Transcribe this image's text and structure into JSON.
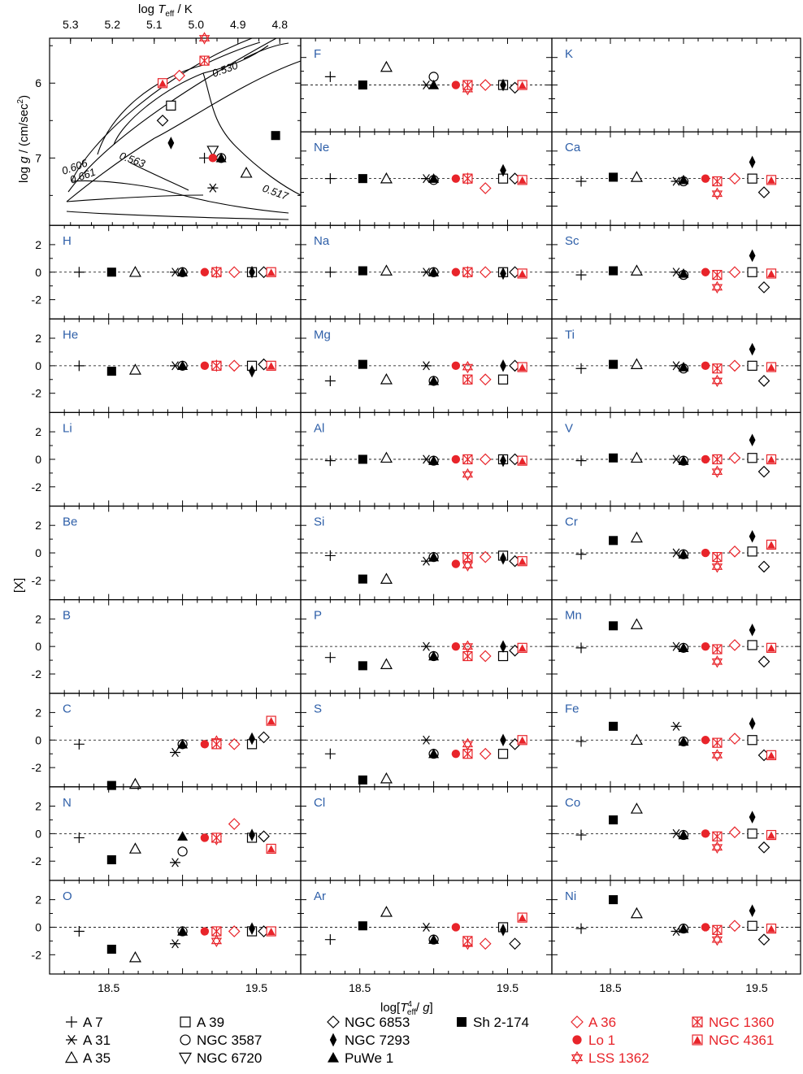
{
  "figure": {
    "xlabel": "log[T_eff^4/ g]",
    "ylabel": "[X]",
    "ylabel_top": "log g / (cm/sec²)",
    "top_axis_label": "log T_eff / K",
    "top_ticks": [
      "5.3",
      "5.2",
      "5.1",
      "5.0",
      "4.9",
      "4.8"
    ],
    "x_ticks": [
      "18.5",
      "19.5"
    ],
    "y_ticks": [
      "2",
      "0",
      "-2"
    ],
    "hr_y_ticks": [
      "6",
      "7"
    ],
    "track_labels": [
      "0.661",
      "0.606",
      "0.563",
      "0.530",
      "0.517"
    ]
  },
  "colors": {
    "black": "#000000",
    "red": "#e8242a",
    "label": "#2e5fa8"
  },
  "chart_data": {
    "type": "scatter",
    "x_range": [
      18.1,
      19.8
    ],
    "y_range": [
      -3.4,
      3.4
    ],
    "rows": [
      [
        "",
        "F",
        "K"
      ],
      [
        "",
        "Ne",
        "Ca"
      ],
      [
        "H",
        "Na",
        "Sc"
      ],
      [
        "He",
        "Mg",
        "Ti"
      ],
      [
        "Li",
        "Al",
        "V"
      ],
      [
        "Be",
        "Si",
        "Cr"
      ],
      [
        "B",
        "P",
        "Mn"
      ],
      [
        "C",
        "S",
        "Fe"
      ],
      [
        "N",
        "Cl",
        "Co"
      ],
      [
        "O",
        "Ar",
        "Ni"
      ]
    ],
    "stars": [
      {
        "name": "A 7",
        "x": 18.3,
        "color": "black",
        "symbol": "plus"
      },
      {
        "name": "A 31",
        "x": 18.95,
        "color": "black",
        "symbol": "asterisk"
      },
      {
        "name": "A 35",
        "x": 18.68,
        "color": "black",
        "symbol": "triangle-up-open"
      },
      {
        "name": "A 39",
        "x": 19.47,
        "color": "black",
        "symbol": "square-open"
      },
      {
        "name": "NGC 3587",
        "x": 19.0,
        "color": "black",
        "symbol": "circle-open"
      },
      {
        "name": "NGC 6720",
        "x": 19.0,
        "color": "black",
        "symbol": "triangle-down-open"
      },
      {
        "name": "NGC 6853",
        "x": 19.55,
        "color": "black",
        "symbol": "diamond-open"
      },
      {
        "name": "NGC 7293",
        "x": 19.47,
        "color": "black",
        "symbol": "diamond-filled"
      },
      {
        "name": "PuWe 1",
        "x": 19.0,
        "color": "black",
        "symbol": "triangle-up-filled"
      },
      {
        "name": "Sh 2-174",
        "x": 18.52,
        "color": "black",
        "symbol": "square-filled"
      },
      {
        "name": "A 36",
        "x": 19.35,
        "color": "red",
        "symbol": "diamond-open"
      },
      {
        "name": "Lo 1",
        "x": 19.15,
        "color": "red",
        "symbol": "circle-filled"
      },
      {
        "name": "LSS 1362",
        "x": 19.23,
        "color": "red",
        "symbol": "hexagram-open"
      },
      {
        "name": "NGC 1360",
        "x": 19.23,
        "color": "red",
        "symbol": "square-x"
      },
      {
        "name": "NGC 4361",
        "x": 19.6,
        "color": "red",
        "symbol": "triangle-in-square"
      }
    ],
    "abundances": {
      "H": {
        "A 7": 0,
        "A 31": 0,
        "A 35": 0,
        "A 39": 0,
        "NGC 3587": 0,
        "NGC 6853": 0,
        "NGC 7293": 0,
        "PuWe 1": 0,
        "Sh 2-174": 0,
        "A 36": 0,
        "Lo 1": 0,
        "LSS 1362": 0,
        "NGC 1360": 0,
        "NGC 4361": 0
      },
      "He": {
        "A 7": 0,
        "A 31": 0,
        "A 35": -0.3,
        "A 39": 0,
        "NGC 3587": 0,
        "NGC 6853": 0.1,
        "NGC 7293": -0.4,
        "PuWe 1": 0,
        "Sh 2-174": -0.4,
        "A 36": 0,
        "Lo 1": 0,
        "LSS 1362": 0,
        "NGC 1360": 0,
        "NGC 4361": 0
      },
      "C": {
        "A 7": -0.3,
        "A 31": -0.9,
        "A 35": -3.2,
        "A 39": -0.3,
        "NGC 3587": -0.3,
        "NGC 6853": 0.2,
        "NGC 7293": 0.1,
        "PuWe 1": -0.3,
        "Sh 2-174": -3.3,
        "A 36": -0.3,
        "Lo 1": -0.3,
        "LSS 1362": -0.1,
        "NGC 1360": -0.3,
        "NGC 4361": 1.4
      },
      "N": {
        "A 7": -0.3,
        "A 31": -2.1,
        "A 35": -1.1,
        "A 39": -0.3,
        "NGC 3587": -1.3,
        "NGC 6853": -0.2,
        "NGC 7293": -0.1,
        "PuWe 1": -0.2,
        "Sh 2-174": -1.9,
        "A 36": 0.7,
        "Lo 1": -0.3,
        "LSS 1362": -0.4,
        "NGC 1360": -0.3,
        "NGC 4361": -1.1
      },
      "O": {
        "A 7": -0.3,
        "A 31": -1.2,
        "A 35": -2.2,
        "A 39": -0.3,
        "NGC 3587": -0.3,
        "NGC 6853": -0.3,
        "NGC 7293": -0.1,
        "PuWe 1": -0.3,
        "Sh 2-174": -1.6,
        "A 36": -0.3,
        "Lo 1": -0.3,
        "LSS 1362": -1.0,
        "NGC 1360": -0.3,
        "NGC 4361": -0.3
      },
      "F": {
        "A 7": 0.6,
        "A 31": 0,
        "A 35": 1.3,
        "A 39": 0,
        "NGC 3587": 0.6,
        "NGC 6853": -0.2,
        "NGC 7293": 0,
        "PuWe 1": 0,
        "Sh 2-174": 0,
        "A 36": 0,
        "Lo 1": 0,
        "LSS 1362": -0.3,
        "NGC 1360": 0,
        "NGC 4361": 0
      },
      "Ne": {
        "A 7": 0,
        "A 31": 0,
        "A 35": 0,
        "A 39": 0,
        "NGC 3587": -0.1,
        "NGC 6853": 0,
        "NGC 7293": 0.6,
        "PuWe 1": 0,
        "Sh 2-174": 0,
        "A 36": -0.7,
        "Lo 1": 0,
        "LSS 1362": 0,
        "NGC 1360": 0,
        "NGC 4361": -0.1
      },
      "Na": {
        "A 7": 0,
        "A 31": 0,
        "A 35": 0.1,
        "A 39": 0,
        "NGC 3587": 0,
        "NGC 6853": 0,
        "NGC 7293": -0.1,
        "PuWe 1": 0,
        "Sh 2-174": 0.1,
        "A 36": 0,
        "Lo 1": 0,
        "LSS 1362": 0,
        "NGC 1360": 0,
        "NGC 4361": -0.1
      },
      "Mg": {
        "A 7": -1.1,
        "A 31": 0,
        "A 35": -1.0,
        "A 39": -1.0,
        "NGC 3587": -1.1,
        "NGC 6853": 0,
        "NGC 7293": 0,
        "PuWe 1": -1.1,
        "Sh 2-174": 0.1,
        "A 36": -1.0,
        "Lo 1": 0,
        "LSS 1362": -0.1,
        "NGC 1360": -1.0,
        "NGC 4361": -0.1
      },
      "Al": {
        "A 7": -0.1,
        "A 31": 0,
        "A 35": 0.1,
        "A 39": 0,
        "NGC 3587": -0.1,
        "NGC 6853": 0,
        "NGC 7293": -0.1,
        "PuWe 1": -0.1,
        "Sh 2-174": 0,
        "A 36": 0,
        "Lo 1": 0,
        "LSS 1362": -1.1,
        "NGC 1360": 0,
        "NGC 4361": -0.1
      },
      "Si": {
        "A 7": -0.2,
        "A 31": -0.6,
        "A 35": -1.9,
        "A 39": -0.2,
        "NGC 3587": -0.3,
        "NGC 6853": -0.6,
        "NGC 7293": -0.4,
        "PuWe 1": -0.3,
        "Sh 2-174": -1.9,
        "A 36": -0.3,
        "Lo 1": -0.8,
        "LSS 1362": -0.9,
        "NGC 1360": -0.3,
        "NGC 4361": -0.6
      },
      "P": {
        "A 7": -0.8,
        "A 31": 0,
        "A 35": -1.3,
        "A 39": -0.7,
        "NGC 3587": -0.7,
        "NGC 6853": -0.3,
        "NGC 7293": 0,
        "PuWe 1": -0.7,
        "Sh 2-174": -1.4,
        "A 36": -0.7,
        "Lo 1": 0,
        "LSS 1362": 0,
        "NGC 1360": -0.7,
        "NGC 4361": -0.1
      },
      "S": {
        "A 7": -1.0,
        "A 31": 0,
        "A 35": -2.8,
        "A 39": -1.0,
        "NGC 3587": -1.0,
        "NGC 6853": -0.3,
        "NGC 7293": 0,
        "PuWe 1": -1.0,
        "Sh 2-174": -2.9,
        "A 36": -1.0,
        "Lo 1": -1.0,
        "LSS 1362": -0.3,
        "NGC 1360": -1.0,
        "NGC 4361": 0
      },
      "Ar": {
        "A 7": -0.9,
        "A 31": 0,
        "A 35": 1.1,
        "A 39": 0,
        "NGC 3587": -0.9,
        "NGC 6853": -1.2,
        "NGC 7293": -0.2,
        "PuWe 1": -0.9,
        "Sh 2-174": 0.1,
        "A 36": -1.2,
        "Lo 1": 0,
        "LSS 1362": -1.2,
        "NGC 1360": -1.0,
        "NGC 4361": 0.7
      },
      "Ca": {
        "A 7": -0.2,
        "A 31": -0.2,
        "A 35": 0.1,
        "A 39": 0,
        "NGC 3587": -0.2,
        "NGC 6853": -1.0,
        "NGC 7293": 1.2,
        "PuWe 1": -0.1,
        "Sh 2-174": 0.1,
        "A 36": 0,
        "Lo 1": 0,
        "LSS 1362": -1.1,
        "NGC 1360": -0.2,
        "NGC 4361": -0.1
      },
      "Sc": {
        "A 7": -0.2,
        "A 31": 0,
        "A 35": 0.1,
        "A 39": 0,
        "NGC 3587": -0.2,
        "NGC 6853": -1.1,
        "NGC 7293": 1.2,
        "PuWe 1": -0.1,
        "Sh 2-174": 0.1,
        "A 36": 0,
        "Lo 1": 0,
        "LSS 1362": -1.1,
        "NGC 1360": -0.2,
        "NGC 4361": -0.1
      },
      "Ti": {
        "A 7": -0.2,
        "A 31": 0,
        "A 35": 0.1,
        "A 39": 0,
        "NGC 3587": -0.2,
        "NGC 6853": -1.1,
        "NGC 7293": 1.2,
        "PuWe 1": -0.1,
        "Sh 2-174": 0.1,
        "A 36": 0,
        "Lo 1": 0,
        "LSS 1362": -1.1,
        "NGC 1360": -0.2,
        "NGC 4361": -0.1
      },
      "V": {
        "A 7": -0.1,
        "A 31": 0,
        "A 35": 0.1,
        "A 39": 0.1,
        "NGC 3587": -0.1,
        "NGC 6853": -0.9,
        "NGC 7293": 1.4,
        "PuWe 1": -0.1,
        "Sh 2-174": 0.1,
        "A 36": 0.1,
        "Lo 1": 0,
        "LSS 1362": -0.9,
        "NGC 1360": 0,
        "NGC 4361": 0
      },
      "Cr": {
        "A 7": -0.1,
        "A 31": 0,
        "A 35": 1.1,
        "A 39": 0.1,
        "NGC 3587": -0.1,
        "NGC 6853": -1.0,
        "NGC 7293": 1.2,
        "PuWe 1": -0.1,
        "Sh 2-174": 0.9,
        "A 36": 0.1,
        "Lo 1": 0,
        "LSS 1362": -1.0,
        "NGC 1360": -0.3,
        "NGC 4361": 0.6
      },
      "Mn": {
        "A 7": -0.1,
        "A 31": 0,
        "A 35": 1.6,
        "A 39": 0.1,
        "NGC 3587": -0.1,
        "NGC 6853": -1.1,
        "NGC 7293": 1.2,
        "PuWe 1": -0.1,
        "Sh 2-174": 1.5,
        "A 36": 0.1,
        "Lo 1": 0,
        "LSS 1362": -1.1,
        "NGC 1360": -0.2,
        "NGC 4361": -0.1
      },
      "Fe": {
        "A 7": -0.1,
        "A 31": 1.0,
        "A 35": 0,
        "A 39": 0,
        "NGC 3587": -0.1,
        "NGC 6853": -1.1,
        "NGC 7293": 1.2,
        "PuWe 1": -0.1,
        "Sh 2-174": 1.0,
        "A 36": 0.1,
        "Lo 1": 0,
        "LSS 1362": -1.1,
        "NGC 1360": -0.2,
        "NGC 4361": -1.1
      },
      "Co": {
        "A 7": -0.1,
        "A 31": 0,
        "A 35": 1.8,
        "A 39": 0,
        "NGC 3587": -0.1,
        "NGC 6853": -1.0,
        "NGC 7293": 1.2,
        "PuWe 1": -0.1,
        "Sh 2-174": 1.0,
        "A 36": 0.1,
        "Lo 1": 0,
        "LSS 1362": -1.0,
        "NGC 1360": -0.2,
        "NGC 4361": -0.1
      },
      "Ni": {
        "A 7": -0.1,
        "A 31": -0.3,
        "A 35": 1.0,
        "A 39": 0.1,
        "NGC 3587": -0.1,
        "NGC 6853": -0.9,
        "NGC 7293": 1.2,
        "PuWe 1": -0.1,
        "Sh 2-174": 2.0,
        "A 36": 0.1,
        "Lo 1": 0,
        "LSS 1362": -0.9,
        "NGC 1360": -0.2,
        "NGC 4361": -0.1
      }
    },
    "hr_diagram": {
      "x_range": [
        5.35,
        4.75
      ],
      "y_range": [
        5.4,
        7.9
      ],
      "points": [
        {
          "name": "A 7",
          "logT": 4.98,
          "logg": 7.0
        },
        {
          "name": "A 31",
          "logT": 4.96,
          "logg": 7.4
        },
        {
          "name": "A 35",
          "logT": 4.88,
          "logg": 7.2
        },
        {
          "name": "A 39",
          "logT": 5.06,
          "logg": 6.3
        },
        {
          "name": "NGC 3587",
          "logT": 4.94,
          "logg": 7.0
        },
        {
          "name": "NGC 6720",
          "logT": 4.96,
          "logg": 6.9
        },
        {
          "name": "NGC 6853",
          "logT": 5.08,
          "logg": 6.5
        },
        {
          "name": "NGC 7293",
          "logT": 5.06,
          "logg": 6.8
        },
        {
          "name": "PuWe 1",
          "logT": 4.94,
          "logg": 7.0
        },
        {
          "name": "Sh 2-174",
          "logT": 4.81,
          "logg": 6.7
        },
        {
          "name": "A 36",
          "logT": 5.04,
          "logg": 5.9
        },
        {
          "name": "Lo 1",
          "logT": 4.96,
          "logg": 7.0
        },
        {
          "name": "LSS 1362",
          "logT": 4.98,
          "logg": 5.4
        },
        {
          "name": "NGC 1360",
          "logT": 4.98,
          "logg": 5.7
        },
        {
          "name": "NGC 4361",
          "logT": 5.08,
          "logg": 6.0
        }
      ]
    }
  }
}
